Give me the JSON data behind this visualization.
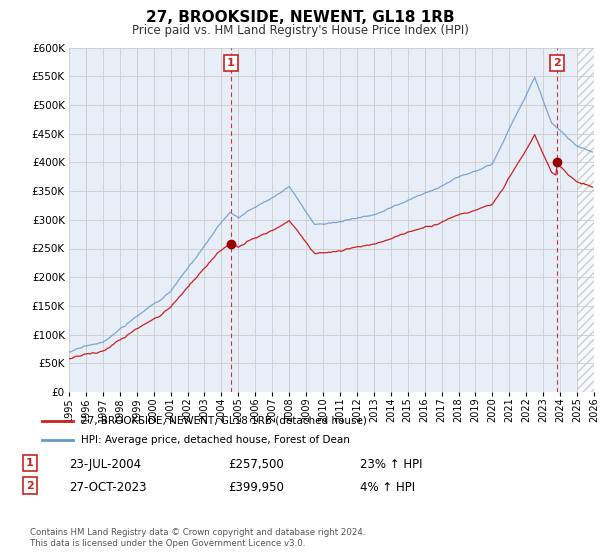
{
  "title": "27, BROOKSIDE, NEWENT, GL18 1RB",
  "subtitle": "Price paid vs. HM Land Registry's House Price Index (HPI)",
  "legend_line1": "27, BROOKSIDE, NEWENT, GL18 1RB (detached house)",
  "legend_line2": "HPI: Average price, detached house, Forest of Dean",
  "annotation1_date": "23-JUL-2004",
  "annotation1_price": "£257,500",
  "annotation1_hpi": "23% ↑ HPI",
  "annotation2_date": "27-OCT-2023",
  "annotation2_price": "£399,950",
  "annotation2_hpi": "4% ↑ HPI",
  "footer": "Contains HM Land Registry data © Crown copyright and database right 2024.\nThis data is licensed under the Open Government Licence v3.0.",
  "sale1_x": 2004.55,
  "sale1_y": 257500,
  "sale2_x": 2023.82,
  "sale2_y": 399950,
  "xmin": 1995,
  "xmax": 2026,
  "ymin": 0,
  "ymax": 600000,
  "yticks": [
    0,
    50000,
    100000,
    150000,
    200000,
    250000,
    300000,
    350000,
    400000,
    450000,
    500000,
    550000,
    600000
  ],
  "grid_color": "#cccccc",
  "background_color": "#e8eef8",
  "hpi_line_color": "#6699cc",
  "price_line_color": "#cc2222",
  "sale_dot_color": "#990000",
  "annotation_line_color": "#cc3333",
  "annotation_box_color": "#cc2222"
}
